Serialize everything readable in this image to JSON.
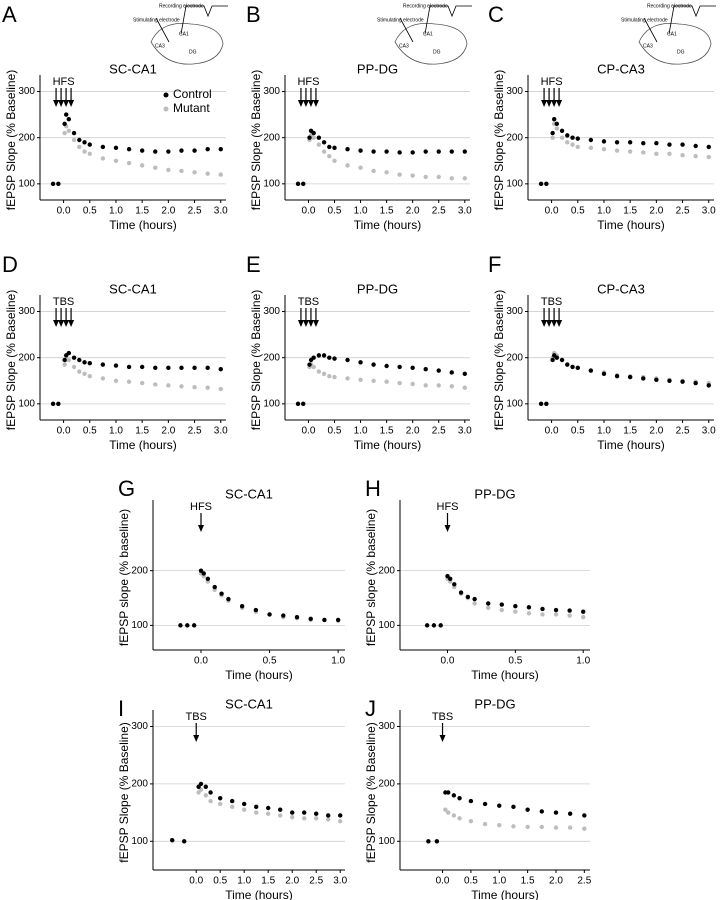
{
  "chart_data": [
    {
      "type": "scatter",
      "panel_label": "A",
      "title": "SC-CA1",
      "stim_label": "HFS",
      "x_label": "Time (hours)",
      "y_label": "fEPSP Slope (% Baseline)",
      "inset_labels": [
        "Recording electrode",
        "Stimulating electrode",
        "CA1",
        "CA3",
        "DG"
      ],
      "xlim": [
        -0.45,
        3.1
      ],
      "ylim": [
        65,
        325
      ],
      "xticks": [
        {
          "value": 0,
          "label": "0.0"
        },
        {
          "value": 0.5,
          "label": "0.5"
        },
        {
          "value": 1,
          "label": "1.0"
        },
        {
          "value": 1.5,
          "label": "1.5"
        },
        {
          "value": 2,
          "label": "2.0"
        },
        {
          "value": 2.5,
          "label": "2.5"
        },
        {
          "value": 3,
          "label": "3.0"
        }
      ],
      "yticks": [
        100,
        200,
        300
      ],
      "grid": true,
      "legend": "top-right",
      "x": [
        -0.2,
        -0.1,
        0.02,
        0.05,
        0.1,
        0.2,
        0.3,
        0.4,
        0.5,
        0.75,
        1.0,
        1.25,
        1.5,
        1.75,
        2.0,
        2.25,
        2.5,
        2.75,
        3.0
      ],
      "series": [
        {
          "name": "Control",
          "color": "#000000",
          "values": [
            100,
            100,
            230,
            250,
            240,
            210,
            195,
            190,
            185,
            180,
            178,
            175,
            172,
            170,
            170,
            172,
            172,
            175,
            175
          ]
        },
        {
          "name": "Mutant",
          "color": "#bdbdbd",
          "values": [
            100,
            100,
            210,
            225,
            215,
            195,
            180,
            170,
            165,
            155,
            150,
            145,
            140,
            135,
            130,
            128,
            125,
            122,
            120
          ]
        }
      ]
    },
    {
      "type": "scatter",
      "panel_label": "B",
      "title": "PP-DG",
      "stim_label": "HFS",
      "x_label": "Time (hours)",
      "y_label": "fEPSP Slope (% Baseline)",
      "inset_labels": [
        "Recording electrode",
        "Stimulating electrode",
        "CA1",
        "CA3",
        "DG"
      ],
      "xlim": [
        -0.45,
        3.1
      ],
      "ylim": [
        65,
        325
      ],
      "xticks": [
        {
          "value": 0,
          "label": "0.0"
        },
        {
          "value": 0.5,
          "label": "0.5"
        },
        {
          "value": 1,
          "label": "1.0"
        },
        {
          "value": 1.5,
          "label": "1.5"
        },
        {
          "value": 2,
          "label": "2.0"
        },
        {
          "value": 2.5,
          "label": "2.5"
        },
        {
          "value": 3,
          "label": "3.0"
        }
      ],
      "yticks": [
        100,
        200,
        300
      ],
      "grid": true,
      "x": [
        -0.2,
        -0.1,
        0.02,
        0.05,
        0.1,
        0.2,
        0.3,
        0.4,
        0.5,
        0.75,
        1.0,
        1.25,
        1.5,
        1.75,
        2.0,
        2.25,
        2.5,
        2.75,
        3.0
      ],
      "series": [
        {
          "color": "#000000",
          "values": [
            100,
            100,
            200,
            215,
            210,
            200,
            190,
            180,
            178,
            175,
            172,
            170,
            170,
            168,
            168,
            170,
            170,
            170,
            170
          ]
        },
        {
          "color": "#bdbdbd",
          "values": [
            100,
            100,
            195,
            205,
            200,
            185,
            170,
            160,
            150,
            140,
            135,
            128,
            125,
            120,
            118,
            115,
            115,
            112,
            112
          ]
        }
      ]
    },
    {
      "type": "scatter",
      "panel_label": "C",
      "title": "CP-CA3",
      "stim_label": "HFS",
      "x_label": "Time (hours)",
      "y_label": "fEPSP Slope (% Baseline)",
      "inset_labels": [
        "Recording electrode",
        "Stimulating electrode",
        "CA1",
        "CA3",
        "DG"
      ],
      "xlim": [
        -0.45,
        3.1
      ],
      "ylim": [
        65,
        325
      ],
      "xticks": [
        {
          "value": 0,
          "label": "0.0"
        },
        {
          "value": 0.5,
          "label": "0.5"
        },
        {
          "value": 1,
          "label": "1.0"
        },
        {
          "value": 1.5,
          "label": "1.5"
        },
        {
          "value": 2,
          "label": "2.0"
        },
        {
          "value": 2.5,
          "label": "2.5"
        },
        {
          "value": 3,
          "label": "3.0"
        }
      ],
      "yticks": [
        100,
        200,
        300
      ],
      "grid": true,
      "x": [
        -0.2,
        -0.1,
        0.02,
        0.05,
        0.1,
        0.2,
        0.3,
        0.4,
        0.5,
        0.75,
        1.0,
        1.25,
        1.5,
        1.75,
        2.0,
        2.25,
        2.5,
        2.75,
        3.0
      ],
      "series": [
        {
          "color": "#000000",
          "values": [
            100,
            100,
            210,
            240,
            230,
            215,
            205,
            200,
            198,
            195,
            192,
            190,
            190,
            188,
            188,
            185,
            185,
            182,
            180
          ]
        },
        {
          "color": "#bdbdbd",
          "values": [
            100,
            100,
            200,
            230,
            220,
            200,
            190,
            185,
            180,
            178,
            175,
            172,
            170,
            168,
            165,
            165,
            162,
            160,
            158
          ]
        }
      ]
    },
    {
      "type": "scatter",
      "panel_label": "D",
      "title": "SC-CA1",
      "stim_label": "TBS",
      "x_label": "Time (hours)",
      "y_label": "fEPSP Slope (% Baseline)",
      "xlim": [
        -0.45,
        3.1
      ],
      "ylim": [
        65,
        325
      ],
      "xticks": [
        {
          "value": 0,
          "label": "0.0"
        },
        {
          "value": 0.5,
          "label": "0.5"
        },
        {
          "value": 1,
          "label": "1.0"
        },
        {
          "value": 1.5,
          "label": "1.5"
        },
        {
          "value": 2,
          "label": "2.0"
        },
        {
          "value": 2.5,
          "label": "2.5"
        },
        {
          "value": 3,
          "label": "3.0"
        }
      ],
      "yticks": [
        100,
        200,
        300
      ],
      "grid": true,
      "x": [
        -0.2,
        -0.1,
        0.02,
        0.05,
        0.1,
        0.2,
        0.3,
        0.4,
        0.5,
        0.75,
        1.0,
        1.25,
        1.5,
        1.75,
        2.0,
        2.25,
        2.5,
        2.75,
        3.0
      ],
      "series": [
        {
          "color": "#000000",
          "values": [
            100,
            100,
            195,
            205,
            210,
            200,
            195,
            190,
            188,
            185,
            183,
            180,
            180,
            178,
            178,
            178,
            178,
            178,
            175
          ]
        },
        {
          "color": "#bdbdbd",
          "values": [
            100,
            100,
            185,
            195,
            195,
            180,
            170,
            165,
            160,
            155,
            150,
            148,
            145,
            142,
            140,
            138,
            136,
            135,
            132
          ]
        }
      ]
    },
    {
      "type": "scatter",
      "panel_label": "E",
      "title": "PP-DG",
      "stim_label": "TBS",
      "x_label": "Time (hours)",
      "y_label": "fEPSP Slope (% Baseline)",
      "xlim": [
        -0.45,
        3.1
      ],
      "ylim": [
        65,
        325
      ],
      "xticks": [
        {
          "value": 0,
          "label": "0.0"
        },
        {
          "value": 0.5,
          "label": "0.5"
        },
        {
          "value": 1,
          "label": "1.0"
        },
        {
          "value": 1.5,
          "label": "1.5"
        },
        {
          "value": 2,
          "label": "2.0"
        },
        {
          "value": 2.5,
          "label": "2.5"
        },
        {
          "value": 3,
          "label": "3.0"
        }
      ],
      "yticks": [
        100,
        200,
        300
      ],
      "grid": true,
      "x": [
        -0.2,
        -0.1,
        0.02,
        0.05,
        0.1,
        0.2,
        0.3,
        0.4,
        0.5,
        0.75,
        1.0,
        1.25,
        1.5,
        1.75,
        2.0,
        2.25,
        2.5,
        2.75,
        3.0
      ],
      "series": [
        {
          "color": "#000000",
          "values": [
            100,
            100,
            185,
            195,
            200,
            205,
            205,
            200,
            198,
            195,
            190,
            185,
            182,
            180,
            178,
            175,
            172,
            168,
            165
          ]
        },
        {
          "color": "#bdbdbd",
          "values": [
            100,
            100,
            180,
            185,
            180,
            170,
            165,
            160,
            158,
            155,
            152,
            150,
            148,
            145,
            143,
            140,
            140,
            138,
            135
          ]
        }
      ]
    },
    {
      "type": "scatter",
      "panel_label": "F",
      "title": "CP-CA3",
      "stim_label": "TBS",
      "x_label": "Time (hours)",
      "y_label": "fEPSP Slope (% Baseline)",
      "xlim": [
        -0.45,
        3.1
      ],
      "ylim": [
        65,
        325
      ],
      "xticks": [
        {
          "value": 0,
          "label": "0.0"
        },
        {
          "value": 0.5,
          "label": "0.5"
        },
        {
          "value": 1,
          "label": "1.0"
        },
        {
          "value": 1.5,
          "label": "1.5"
        },
        {
          "value": 2,
          "label": "2.0"
        },
        {
          "value": 2.5,
          "label": "2.5"
        },
        {
          "value": 3,
          "label": "3.0"
        }
      ],
      "yticks": [
        100,
        200,
        300
      ],
      "grid": true,
      "x": [
        -0.2,
        -0.1,
        0.02,
        0.05,
        0.1,
        0.2,
        0.3,
        0.4,
        0.5,
        0.75,
        1.0,
        1.25,
        1.5,
        1.75,
        2.0,
        2.25,
        2.5,
        2.75,
        3.0
      ],
      "series": [
        {
          "color": "#000000",
          "values": [
            100,
            100,
            195,
            205,
            200,
            195,
            185,
            180,
            178,
            172,
            165,
            160,
            158,
            155,
            152,
            150,
            148,
            145,
            140
          ]
        },
        {
          "color": "#bdbdbd",
          "values": [
            100,
            100,
            200,
            210,
            205,
            195,
            185,
            180,
            178,
            172,
            168,
            162,
            160,
            158,
            155,
            152,
            150,
            148,
            145
          ]
        }
      ]
    },
    {
      "type": "scatter",
      "panel_label": "G",
      "title": "SC-CA1",
      "stim_label": "HFS",
      "x_label": "Time (hours)",
      "y_label": "fEPSP slope (% baseline)",
      "xlim": [
        -0.35,
        1.05
      ],
      "ylim": [
        55,
        320
      ],
      "xticks": [
        {
          "value": 0,
          "label": "0.0"
        },
        {
          "value": 0.5,
          "label": "0.5"
        },
        {
          "value": 1,
          "label": "1.0"
        }
      ],
      "yticks": [
        100,
        200
      ],
      "grid": true,
      "x": [
        -0.15,
        -0.1,
        -0.05,
        0.0,
        0.02,
        0.05,
        0.1,
        0.15,
        0.2,
        0.3,
        0.4,
        0.5,
        0.6,
        0.7,
        0.8,
        0.9,
        1.0
      ],
      "series": [
        {
          "color": "#000000",
          "values": [
            100,
            100,
            100,
            200,
            195,
            185,
            170,
            158,
            148,
            135,
            128,
            120,
            118,
            115,
            112,
            110,
            110
          ]
        },
        {
          "color": "#bdbdbd",
          "values": [
            100,
            100,
            100,
            195,
            190,
            180,
            165,
            155,
            145,
            132,
            125,
            120,
            115,
            113,
            110,
            110,
            108
          ]
        }
      ]
    },
    {
      "type": "scatter",
      "panel_label": "H",
      "title": "PP-DG",
      "stim_label": "HFS",
      "x_label": "Time (hours)",
      "y_label": "fEPSP slope (% baseline)",
      "xlim": [
        -0.35,
        1.05
      ],
      "ylim": [
        55,
        320
      ],
      "xticks": [
        {
          "value": 0,
          "label": "0.0"
        },
        {
          "value": 0.5,
          "label": "0.5"
        },
        {
          "value": 1,
          "label": "1.0"
        }
      ],
      "yticks": [
        100,
        200
      ],
      "grid": true,
      "x": [
        -0.15,
        -0.1,
        -0.05,
        0.0,
        0.02,
        0.05,
        0.1,
        0.15,
        0.2,
        0.3,
        0.4,
        0.5,
        0.6,
        0.7,
        0.8,
        0.9,
        1.0
      ],
      "series": [
        {
          "color": "#000000",
          "values": [
            100,
            100,
            100,
            190,
            185,
            175,
            160,
            152,
            148,
            140,
            138,
            135,
            133,
            130,
            128,
            127,
            125
          ]
        },
        {
          "color": "#bdbdbd",
          "values": [
            100,
            100,
            100,
            185,
            180,
            170,
            158,
            150,
            140,
            132,
            128,
            125,
            122,
            120,
            120,
            118,
            115
          ]
        }
      ]
    },
    {
      "type": "scatter",
      "panel_label": "I",
      "title": "SC-CA1",
      "stim_label": "TBS",
      "x_label": "Time (hours)",
      "y_label": "fEPSP Slope (% Baseline)",
      "xlim": [
        -0.9,
        3.1
      ],
      "ylim": [
        50,
        320
      ],
      "xticks": [
        {
          "value": 0,
          "label": "0.0"
        },
        {
          "value": 0.5,
          "label": "0.5"
        },
        {
          "value": 1,
          "label": "1.0"
        },
        {
          "value": 1.5,
          "label": "1.5"
        },
        {
          "value": 2,
          "label": "2.0"
        },
        {
          "value": 2.5,
          "label": "2.5"
        },
        {
          "value": 3,
          "label": "3.0"
        }
      ],
      "yticks": [
        100,
        200,
        300
      ],
      "grid": true,
      "x": [
        -0.5,
        -0.25,
        0.05,
        0.1,
        0.2,
        0.3,
        0.5,
        0.75,
        1.0,
        1.25,
        1.5,
        1.75,
        2.0,
        2.25,
        2.5,
        2.75,
        3.0
      ],
      "series": [
        {
          "color": "#000000",
          "values": [
            102,
            100,
            195,
            200,
            195,
            185,
            175,
            170,
            165,
            160,
            158,
            155,
            150,
            150,
            148,
            145,
            145
          ]
        },
        {
          "color": "#bdbdbd",
          "values": [
            102,
            100,
            185,
            190,
            180,
            170,
            165,
            160,
            155,
            150,
            148,
            145,
            142,
            140,
            140,
            138,
            135
          ]
        }
      ]
    },
    {
      "type": "scatter",
      "panel_label": "J",
      "title": "PP-DG",
      "stim_label": "TBS",
      "x_label": "Time (hours)",
      "y_label": "fEPSP Slope (% Baseline)",
      "xlim": [
        -0.75,
        2.6
      ],
      "ylim": [
        50,
        320
      ],
      "xticks": [
        {
          "value": 0,
          "label": "0.0"
        },
        {
          "value": 0.5,
          "label": "0.5"
        },
        {
          "value": 1,
          "label": "1.0"
        },
        {
          "value": 1.5,
          "label": "1.5"
        },
        {
          "value": 2,
          "label": "2.0"
        },
        {
          "value": 2.5,
          "label": "2.5"
        }
      ],
      "yticks": [
        100,
        200,
        300
      ],
      "grid": true,
      "x": [
        -0.25,
        -0.1,
        0.05,
        0.1,
        0.2,
        0.3,
        0.5,
        0.75,
        1.0,
        1.25,
        1.5,
        1.75,
        2.0,
        2.25,
        2.5
      ],
      "series": [
        {
          "color": "#000000",
          "values": [
            100,
            100,
            185,
            185,
            180,
            175,
            170,
            165,
            162,
            160,
            155,
            152,
            150,
            148,
            145
          ]
        },
        {
          "color": "#bdbdbd",
          "values": [
            100,
            100,
            155,
            150,
            145,
            140,
            135,
            130,
            128,
            126,
            125,
            125,
            124,
            124,
            122
          ]
        }
      ]
    }
  ]
}
